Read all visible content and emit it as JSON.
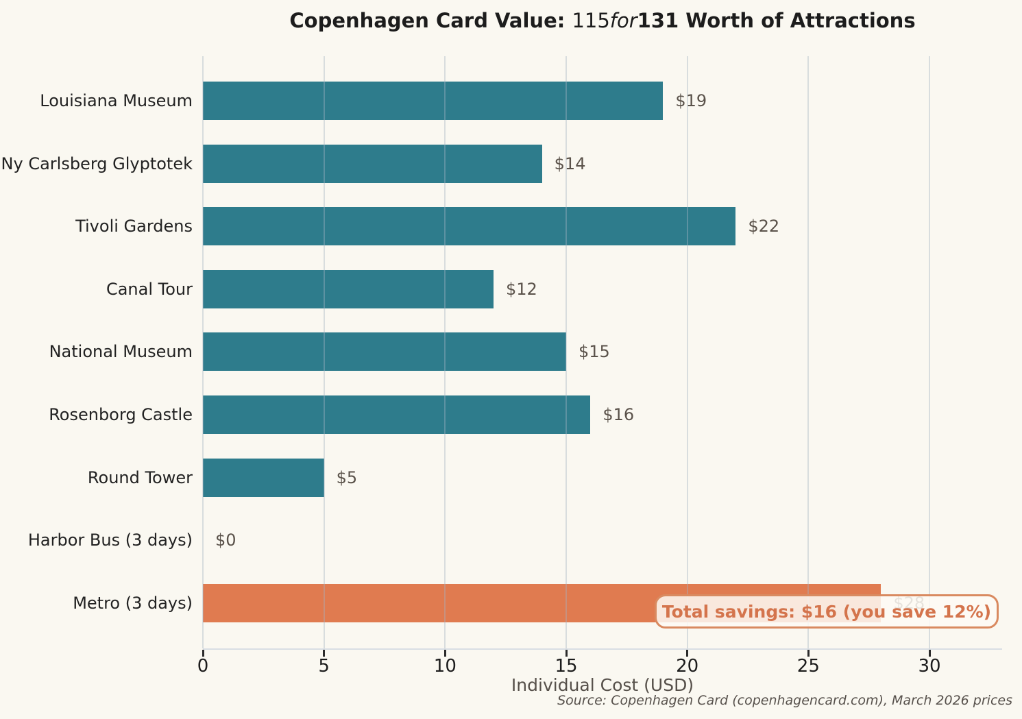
{
  "title": {
    "prefix": "Copenhagen Card Value: ",
    "value1": "115",
    "connector": "for",
    "suffix": "131 Worth of Attractions"
  },
  "chart_data": {
    "type": "bar",
    "orientation": "horizontal",
    "categories": [
      "Louisiana Museum",
      "Ny Carlsberg Glyptotek",
      "Tivoli Gardens",
      "Canal Tour",
      "National Museum",
      "Rosenborg Castle",
      "Round Tower",
      "Harbor Bus (3 days)",
      "Metro (3 days)"
    ],
    "values": [
      19,
      14,
      22,
      12,
      15,
      16,
      5,
      0,
      28
    ],
    "bar_labels": [
      "$19",
      "$14",
      "$22",
      "$12",
      "$15",
      "$16",
      "$5",
      "$0",
      "$28"
    ],
    "highlight_index": 8,
    "xlabel": "Individual Cost (USD)",
    "xlim": [
      0,
      33
    ],
    "xticks": [
      0,
      5,
      10,
      15,
      20,
      25,
      30
    ],
    "grid": "vertical-gridlines-over-bars",
    "legend": "none",
    "annotation": "Total savings: $16 (you save 12%)",
    "source": "Source: Copenhagen Card (copenhagencard.com), March 2026 prices",
    "colors": {
      "bar": "#2e7c8c",
      "highlight_bar": "#e07b50",
      "annotation_text": "#d4744c",
      "annotation_border": "#d98a60",
      "background": "#faf8f1",
      "value_label": "#5a524a",
      "tick_label": "#1c1c1c",
      "axis_label": "#56504a"
    }
  }
}
